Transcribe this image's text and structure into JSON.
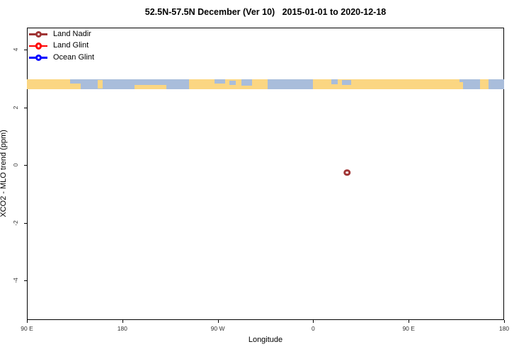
{
  "title": "52.5N-57.5N December (Ver 10)   2015-01-01 to 2020-12-18",
  "legend": [
    {
      "label": "Land Nadir",
      "color": "#A03535",
      "symbol": "open-circle-on-line"
    },
    {
      "label": "Land Glint",
      "color": "#FF0000",
      "symbol": "open-circle-on-line"
    },
    {
      "label": "Ocean Glint",
      "color": "#0000FF",
      "symbol": "open-circle-on-line"
    }
  ],
  "chart_data": {
    "type": "scatter",
    "title": "52.5N-57.5N December (Ver 10)   2015-01-01 to 2020-12-18",
    "xlabel": "Longitude",
    "ylabel": "XCO2 - MLO trend (ppm)",
    "xlim": [
      -270,
      180
    ],
    "ylim": [
      -5.37,
      4.76
    ],
    "x_ticks": [
      {
        "lon": -270,
        "label": "90 E"
      },
      {
        "lon": -180,
        "label": "180"
      },
      {
        "lon": -90,
        "label": "90 W"
      },
      {
        "lon": 0,
        "label": "0"
      },
      {
        "lon": 90,
        "label": "90 E"
      },
      {
        "lon": 180,
        "label": "180"
      }
    ],
    "y_ticks": [
      {
        "value": 4,
        "label": "4"
      },
      {
        "value": 2,
        "label": "2"
      },
      {
        "value": 0,
        "label": "0"
      },
      {
        "value": -2,
        "label": "-2"
      },
      {
        "value": -4,
        "label": "-4"
      }
    ],
    "grid": false,
    "legend_position": "top-left",
    "series": [
      {
        "name": "Land Nadir",
        "color": "#A03535",
        "points": [
          {
            "lon": 32,
            "value": -0.26
          }
        ]
      },
      {
        "name": "Land Glint",
        "color": "#FF0000",
        "points": []
      },
      {
        "name": "Ocean Glint",
        "color": "#0000FF",
        "points": []
      }
    ],
    "map_strip": {
      "description": "world-map latitude band 52.5N-57.5N drawn across the plot",
      "value_top": 2.97,
      "value_bottom": 2.63,
      "land_color": "#FBD682",
      "ocean_color": "#A9BDDB",
      "ocean_segments_lon": [
        [
          -229,
          -117
        ],
        [
          -43,
          0
        ],
        [
          138,
          180
        ]
      ],
      "detail_patches": [
        {
          "lon0": -229,
          "lon1": -219,
          "top": 0.45,
          "bottom": 1.0,
          "type": "land",
          "name": "siberia-coast"
        },
        {
          "lon0": -203,
          "lon1": -198.5,
          "top": 0.05,
          "bottom": 0.95,
          "type": "land",
          "name": "kamchatka-west"
        },
        {
          "lon0": -168.5,
          "lon1": -138.5,
          "top": 0.55,
          "bottom": 1.0,
          "type": "land",
          "name": "aleutians-alaska"
        },
        {
          "lon0": -93,
          "lon1": -83,
          "top": 0.0,
          "bottom": 0.4,
          "type": "ocean",
          "name": "hudson-bay"
        },
        {
          "lon0": -79,
          "lon1": -73,
          "top": 0.15,
          "bottom": 0.55,
          "type": "ocean",
          "name": "hudson-strait"
        },
        {
          "lon0": -68,
          "lon1": -58,
          "top": 0.0,
          "bottom": 0.65,
          "type": "ocean",
          "name": "labrador-sea"
        },
        {
          "lon0": 17,
          "lon1": 23,
          "top": 0.0,
          "bottom": 0.5,
          "type": "ocean",
          "name": "north-sea"
        },
        {
          "lon0": 27,
          "lon1": 36,
          "top": 0.1,
          "bottom": 0.55,
          "type": "ocean",
          "name": "baltic-sea"
        },
        {
          "lon0": 135,
          "lon1": 141,
          "top": 0.3,
          "bottom": 1.0,
          "type": "land",
          "name": "okhotsk-coast"
        },
        {
          "lon0": 157,
          "lon1": 165.5,
          "top": 0.0,
          "bottom": 1.0,
          "type": "land",
          "name": "kamchatka-east"
        }
      ]
    }
  }
}
